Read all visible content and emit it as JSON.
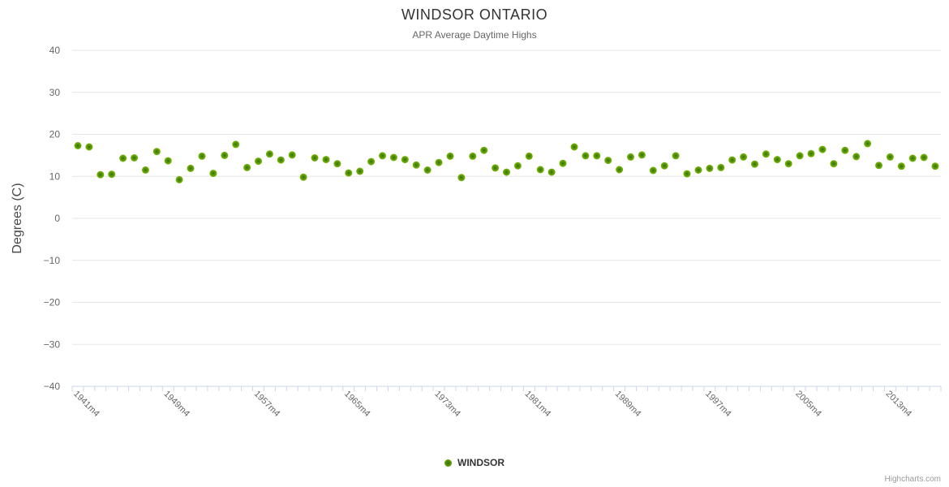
{
  "header": {
    "title": "WINDSOR ONTARIO",
    "subtitle": "APR Average Daytime Highs"
  },
  "legend": {
    "label": "WINDSOR"
  },
  "credits": {
    "label": "Highcharts.com"
  },
  "colors": {
    "point_edge": "#79b807",
    "point_mid": "#54910a",
    "point_core": "#336c05",
    "grid_line": "#e6e6e6",
    "axis_line": "#ccd6eb",
    "axis_label": "#666666",
    "title_text": "#333333",
    "subtitle_text": "#666666",
    "y_title_text": "#4a4a4a",
    "legend_text": "#333333",
    "credits_text": "#999999"
  },
  "chart_data": {
    "type": "scatter",
    "title": "WINDSOR ONTARIO",
    "subtitle": "APR Average Daytime Highs",
    "xlabel": "",
    "ylabel": "Degrees (C)",
    "ylim": [
      -40,
      40
    ],
    "y_tick_step": 10,
    "y_tick_labels": [
      "40",
      "30",
      "20",
      "10",
      "0",
      "−10",
      "−20",
      "−30",
      "−40"
    ],
    "y_tick_values": [
      40,
      30,
      20,
      10,
      0,
      -10,
      -20,
      -30,
      -40
    ],
    "grid": true,
    "x_start_year": 1941,
    "x_end_year": 2017,
    "x_label_suffix": "m4",
    "x_label_interval": 8,
    "x_label_indices": [
      0,
      8,
      16,
      24,
      32,
      40,
      48,
      56,
      64,
      72
    ],
    "x_tick_labels_shown": [
      "1941m4",
      "1949m4",
      "1957m4",
      "1965m4",
      "1973m4",
      "1981m4",
      "1989m4",
      "1997m4",
      "2005m4",
      "2013m4"
    ],
    "legend_position": "bottom-center",
    "series": [
      {
        "name": "WINDSOR",
        "color": "#79b807",
        "values": [
          17.3,
          17.0,
          10.4,
          10.5,
          14.3,
          14.4,
          11.5,
          15.9,
          13.7,
          9.2,
          11.9,
          14.8,
          10.7,
          15.0,
          17.6,
          12.1,
          13.6,
          15.3,
          13.9,
          15.1,
          9.8,
          14.4,
          14.0,
          13.0,
          10.8,
          11.2,
          13.5,
          14.9,
          14.5,
          14.0,
          12.7,
          11.5,
          13.3,
          14.8,
          9.7,
          14.8,
          16.2,
          12.0,
          11.0,
          12.5,
          14.8,
          11.6,
          11.0,
          13.1,
          17.0,
          14.9,
          14.9,
          13.8,
          11.6,
          14.6,
          15.1,
          11.4,
          12.5,
          14.9,
          10.6,
          11.5,
          11.9,
          12.1,
          13.9,
          14.6,
          12.9,
          15.3,
          14.0,
          13.0,
          14.9,
          15.4,
          16.4,
          13.0,
          16.2,
          14.7,
          17.8,
          12.6,
          14.6,
          12.4,
          14.3,
          14.5,
          12.4
        ]
      }
    ]
  }
}
